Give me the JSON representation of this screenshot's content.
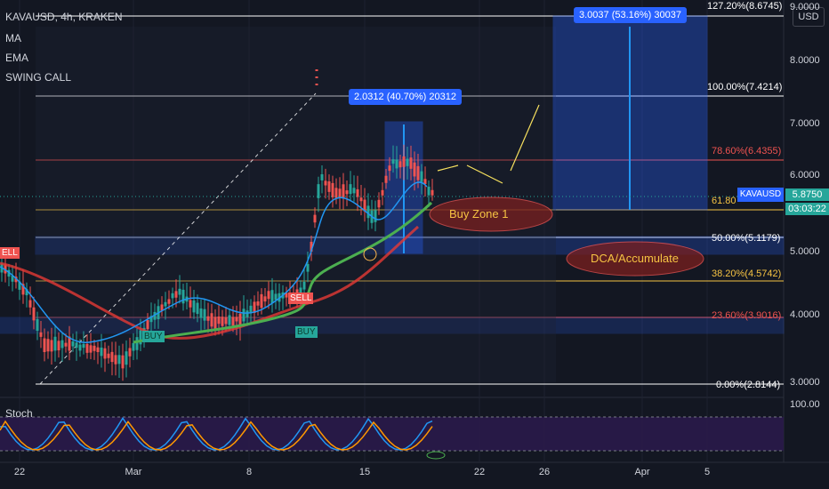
{
  "header": {
    "symbol": "KAVAUSD, 4h, KRAKEN",
    "indicators": [
      "MA",
      "EMA",
      "SWING CALL"
    ],
    "currency": "USD"
  },
  "price_label": {
    "symbol": "KAVAUSD",
    "price": "5.8750",
    "countdown": "03:03:22"
  },
  "measure_boxes": [
    {
      "text": "3.0037 (53.16%) 30037"
    },
    {
      "text": "2.0312 (40.70%) 20312"
    }
  ],
  "fib_levels": [
    {
      "label": "127.20%(8.6745)",
      "color": "#ffffff"
    },
    {
      "label": "100.00%(7.4214)",
      "color": "#ffffff"
    },
    {
      "label": "78.60%(6.4355)",
      "color": "#ef5350"
    },
    {
      "label": "61.80",
      "color": "#f6c343"
    },
    {
      "label": "50.00%(5.1179)",
      "color": "#ffffff"
    },
    {
      "label": "38.20%(4.5742)",
      "color": "#f6c343"
    },
    {
      "label": "23.60%(3.9016)",
      "color": "#ef5350"
    },
    {
      "label": "0.00%(2.8144)",
      "color": "#ffffff"
    }
  ],
  "annotations": {
    "buy_zone": "Buy Zone 1",
    "dca": "DCA/Accumulate"
  },
  "signals": {
    "sell_left": "ELL",
    "sell_mid": "SELL",
    "buy_low": "BUY",
    "buy_mid": "BUY"
  },
  "y_axis": [
    "9.0000",
    "8.0000",
    "7.0000",
    "6.0000",
    "5.0000",
    "4.0000",
    "3.0000"
  ],
  "stoch": {
    "title": "Stoch",
    "y_axis": [
      "100.00"
    ]
  },
  "x_axis": [
    "22",
    "Mar",
    "8",
    "15",
    "22",
    "26",
    "Apr",
    "5"
  ],
  "colors": {
    "background": "#131722",
    "up": "#26a69a",
    "down": "#ef5350",
    "accent": "#2962ff",
    "ma": "#e53935",
    "ema": "#4caf50",
    "swing": "#2196f3"
  }
}
